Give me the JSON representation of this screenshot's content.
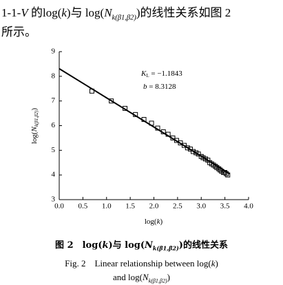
{
  "intro": {
    "line1": [
      "1-1-",
      "V",
      " 的log(",
      "k",
      ")与 log(",
      "N",
      "k(β1,β2)",
      ")的线性关系如图 2"
    ],
    "line2": "所示。"
  },
  "chart_data": {
    "type": "scatter",
    "xlabel": [
      "log(",
      "k",
      ")"
    ],
    "ylabel": [
      "log(",
      "N",
      "k(β1,β2)",
      ")"
    ],
    "xlim": [
      0,
      4
    ],
    "ylim": [
      3,
      9
    ],
    "xticks": [
      {
        "value": 0,
        "label": "0.0"
      },
      {
        "value": 0.5,
        "label": "0.5"
      },
      {
        "value": 1,
        "label": "1.0"
      },
      {
        "value": 1.5,
        "label": "1.5"
      },
      {
        "value": 2,
        "label": "2.0"
      },
      {
        "value": 2.5,
        "label": "2.5"
      },
      {
        "value": 3,
        "label": "3.0"
      },
      {
        "value": 3.5,
        "label": "3.5"
      },
      {
        "value": 4,
        "label": "4.0"
      }
    ],
    "yticks": [
      3,
      4,
      5,
      6,
      7,
      8,
      9
    ],
    "color": "#000000",
    "series": [
      {
        "x": [
          0.69,
          1.1,
          1.39,
          1.61,
          1.79,
          1.95,
          2.08,
          2.2,
          2.3,
          2.4,
          2.48,
          2.56,
          2.64,
          2.71,
          2.77,
          2.83,
          2.89,
          2.94,
          3.0,
          3.04,
          3.09,
          3.14,
          3.18,
          3.22,
          3.26,
          3.3,
          3.33,
          3.37,
          3.4,
          3.43,
          3.47,
          3.5,
          3.53,
          3.56
        ],
        "values": [
          7.4,
          7.0,
          6.7,
          6.45,
          6.25,
          6.1,
          5.9,
          5.75,
          5.65,
          5.5,
          5.4,
          5.3,
          5.2,
          5.1,
          5.05,
          4.95,
          4.9,
          4.85,
          4.75,
          4.7,
          4.65,
          4.6,
          4.5,
          4.45,
          4.4,
          4.35,
          4.3,
          4.25,
          4.2,
          4.15,
          4.1,
          4.1,
          4.05,
          4.0
        ]
      },
      {
        "type": "line",
        "x": [
          0,
          3.6
        ],
        "values": [
          8.31,
          4.05
        ]
      }
    ],
    "annotations": {
      "kl": [
        "K",
        "L",
        " = −1.1843"
      ],
      "b": [
        "b",
        " = 8.3128"
      ]
    }
  },
  "caption": {
    "cn": [
      "图 2　log(",
      "k",
      ")与 log(",
      "N",
      "k(β1,β2)",
      ")的线性关系"
    ],
    "en1": [
      "Fig. 2　Linear relationship between log(",
      "k",
      ")"
    ],
    "en2": [
      "and log(",
      "N",
      "k(β1,β2)",
      ")"
    ]
  }
}
